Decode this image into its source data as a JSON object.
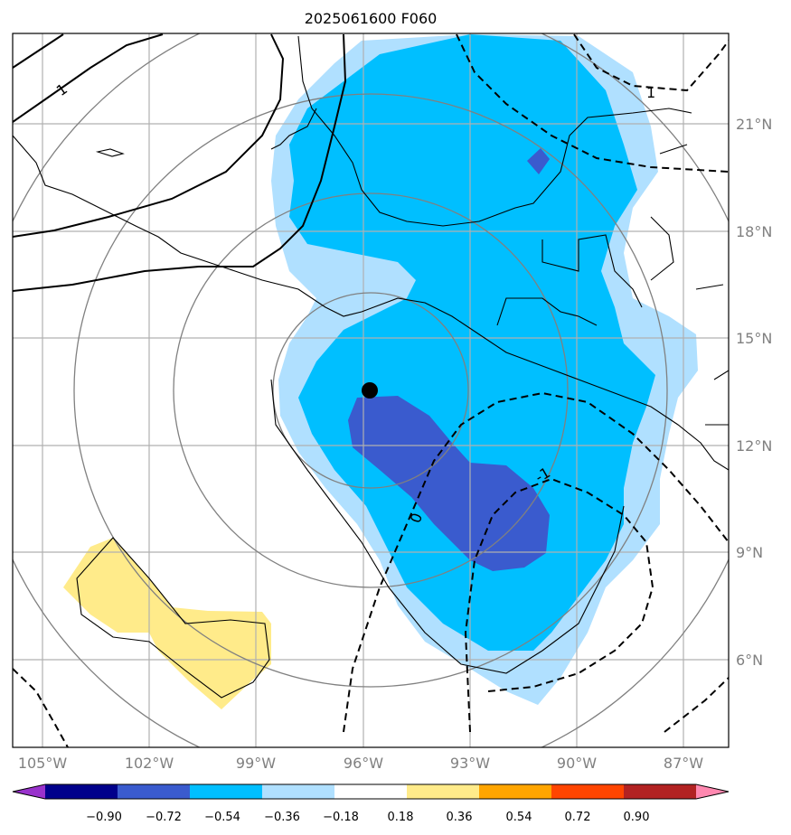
{
  "title": "2025061600 F060",
  "map": {
    "x_ticks": [
      "105°W",
      "102°W",
      "99°W",
      "96°W",
      "93°W",
      "90°W",
      "87°W"
    ],
    "y_ticks": [
      "21°N",
      "18°N",
      "15°N",
      "12°N",
      "9°N",
      "6°N"
    ],
    "contour_labels": [
      "1",
      "1",
      "-1",
      "0"
    ],
    "center_marker": "storm-center-dot",
    "colors": {
      "land_outline": "#000000",
      "grid": "#b0b0b0",
      "range_rings": "#808080"
    }
  },
  "colorbar": {
    "ticks": [
      "−0.90",
      "−0.72",
      "−0.54",
      "−0.36",
      "−0.18",
      "0.18",
      "0.36",
      "0.54",
      "0.72",
      "0.90"
    ],
    "colors": [
      "#9932CC",
      "#00008B",
      "#3A5BCE",
      "#00BFFF",
      "#B0E0FF",
      "#FFFFFF",
      "#FFEB8A",
      "#FFA500",
      "#FF4500",
      "#B22222",
      "#FF88B0"
    ]
  }
}
